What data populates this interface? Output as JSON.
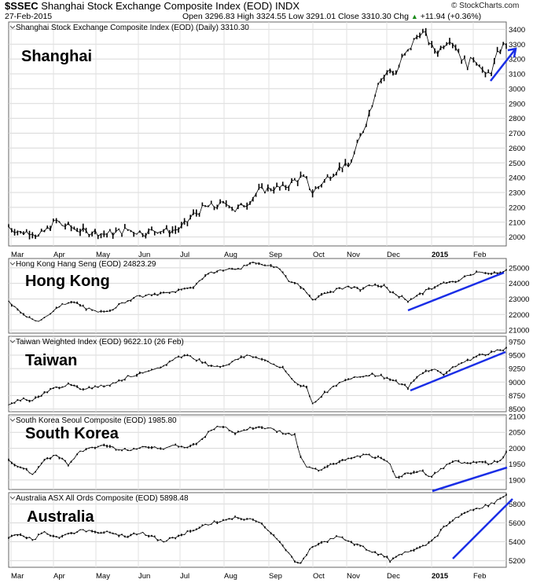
{
  "header": {
    "symbol": "$SSEC",
    "index_name": "Shanghai Stock Exchange Composite Index (EOD)",
    "exchange": "INDX",
    "date": "27-Feb-2015",
    "open_label": "Open",
    "open": "3296.83",
    "high_label": "High",
    "high": "3324.55",
    "low_label": "Low",
    "low": "3291.01",
    "close_label": "Close",
    "close": "3310.30",
    "chg_label": "Chg",
    "chg": "+11.94 (+0.36%)",
    "chg_arrow": "▲",
    "credit": "© StockCharts.com"
  },
  "chart_data": [
    {
      "type": "line",
      "title": "Shanghai Stock Exchange Composite Index (EOD) (Daily) 3310.30",
      "label": "Shanghai",
      "ylim": [
        1940,
        3450
      ],
      "yticks": [
        2000,
        2100,
        2200,
        2300,
        2400,
        2500,
        2600,
        2700,
        2800,
        2900,
        3000,
        3100,
        3200,
        3300,
        3400
      ],
      "x_months": [
        "Mar",
        "Apr",
        "May",
        "Jun",
        "Jul",
        "Aug",
        "Sep",
        "Oct",
        "Nov",
        "Dec",
        "2015",
        "Feb"
      ],
      "series_points": [
        [
          0,
          2070
        ],
        [
          4,
          2030
        ],
        [
          8,
          2040
        ],
        [
          10,
          2000
        ],
        [
          14,
          2070
        ],
        [
          16,
          2110
        ],
        [
          18,
          2080
        ],
        [
          22,
          2060
        ],
        [
          26,
          2030
        ],
        [
          28,
          2040
        ],
        [
          32,
          2020
        ],
        [
          36,
          2030
        ],
        [
          40,
          2050
        ],
        [
          42,
          2040
        ],
        [
          46,
          2030
        ],
        [
          50,
          2050
        ],
        [
          54,
          2040
        ],
        [
          58,
          2060
        ],
        [
          62,
          2150
        ],
        [
          66,
          2200
        ],
        [
          70,
          2210
        ],
        [
          74,
          2230
        ],
        [
          76,
          2180
        ],
        [
          80,
          2230
        ],
        [
          84,
          2310
        ],
        [
          88,
          2330
        ],
        [
          92,
          2330
        ],
        [
          96,
          2380
        ],
        [
          98,
          2400
        ],
        [
          100,
          2380
        ],
        [
          102,
          2300
        ],
        [
          104,
          2340
        ],
        [
          108,
          2420
        ],
        [
          112,
          2480
        ],
        [
          114,
          2470
        ],
        [
          116,
          2560
        ],
        [
          120,
          2780
        ],
        [
          122,
          2900
        ],
        [
          124,
          3050
        ],
        [
          126,
          3080
        ],
        [
          128,
          3130
        ],
        [
          130,
          3100
        ],
        [
          132,
          3200
        ],
        [
          134,
          3250
        ],
        [
          136,
          3320
        ],
        [
          138,
          3380
        ],
        [
          140,
          3360
        ],
        [
          142,
          3280
        ],
        [
          144,
          3250
        ],
        [
          146,
          3300
        ],
        [
          148,
          3340
        ],
        [
          150,
          3290
        ],
        [
          152,
          3210
        ],
        [
          154,
          3160
        ],
        [
          156,
          3210
        ],
        [
          158,
          3170
        ],
        [
          160,
          3080
        ],
        [
          162,
          3120
        ],
        [
          164,
          3230
        ],
        [
          166,
          3290
        ],
        [
          167,
          3310
        ]
      ],
      "trend_arrow": "up"
    },
    {
      "type": "line",
      "title": "Hong Kong Hang Seng (EOD) 24823.29",
      "label": "Hong Kong",
      "ylim": [
        20800,
        25600
      ],
      "yticks": [
        21000,
        22000,
        23000,
        24000,
        25000
      ],
      "series_points": [
        [
          0,
          22800
        ],
        [
          6,
          21800
        ],
        [
          10,
          21600
        ],
        [
          14,
          22100
        ],
        [
          18,
          22600
        ],
        [
          22,
          22800
        ],
        [
          26,
          22400
        ],
        [
          30,
          22100
        ],
        [
          34,
          22300
        ],
        [
          38,
          22700
        ],
        [
          42,
          23100
        ],
        [
          46,
          23200
        ],
        [
          50,
          23300
        ],
        [
          54,
          23400
        ],
        [
          58,
          23600
        ],
        [
          62,
          23800
        ],
        [
          66,
          24500
        ],
        [
          70,
          24800
        ],
        [
          74,
          24900
        ],
        [
          78,
          25000
        ],
        [
          82,
          25300
        ],
        [
          86,
          25200
        ],
        [
          90,
          25100
        ],
        [
          94,
          24200
        ],
        [
          98,
          23800
        ],
        [
          102,
          23000
        ],
        [
          106,
          23300
        ],
        [
          110,
          23600
        ],
        [
          114,
          23800
        ],
        [
          118,
          23600
        ],
        [
          122,
          23900
        ],
        [
          126,
          23800
        ],
        [
          128,
          23500
        ],
        [
          130,
          23300
        ],
        [
          134,
          22900
        ],
        [
          138,
          23300
        ],
        [
          142,
          23700
        ],
        [
          146,
          24000
        ],
        [
          150,
          24100
        ],
        [
          154,
          24500
        ],
        [
          158,
          24800
        ],
        [
          162,
          24600
        ],
        [
          166,
          24700
        ],
        [
          167,
          24820
        ]
      ],
      "trend_arrow": "up"
    },
    {
      "type": "line",
      "title": "Taiwan Weighted Index (EOD) 9622.10 (26 Feb)",
      "label": "Taiwan",
      "ylim": [
        8450,
        9850
      ],
      "yticks": [
        8500,
        8750,
        9000,
        9250,
        9500,
        9750
      ],
      "series_points": [
        [
          0,
          8600
        ],
        [
          4,
          8680
        ],
        [
          8,
          8660
        ],
        [
          12,
          8800
        ],
        [
          16,
          8900
        ],
        [
          20,
          8950
        ],
        [
          24,
          8880
        ],
        [
          28,
          8900
        ],
        [
          32,
          8930
        ],
        [
          36,
          9000
        ],
        [
          40,
          9100
        ],
        [
          44,
          9150
        ],
        [
          48,
          9200
        ],
        [
          52,
          9300
        ],
        [
          56,
          9450
        ],
        [
          60,
          9500
        ],
        [
          64,
          9400
        ],
        [
          68,
          9300
        ],
        [
          72,
          9300
        ],
        [
          76,
          9400
        ],
        [
          80,
          9500
        ],
        [
          84,
          9450
        ],
        [
          88,
          9350
        ],
        [
          92,
          9250
        ],
        [
          96,
          9000
        ],
        [
          100,
          8900
        ],
        [
          102,
          8600
        ],
        [
          106,
          8800
        ],
        [
          110,
          8950
        ],
        [
          114,
          9050
        ],
        [
          118,
          9100
        ],
        [
          122,
          9150
        ],
        [
          126,
          9100
        ],
        [
          130,
          9000
        ],
        [
          134,
          8900
        ],
        [
          138,
          9150
        ],
        [
          142,
          9250
        ],
        [
          146,
          9150
        ],
        [
          150,
          9300
        ],
        [
          154,
          9400
        ],
        [
          158,
          9500
        ],
        [
          162,
          9550
        ],
        [
          166,
          9600
        ],
        [
          167,
          9622
        ]
      ],
      "trend_arrow": "up"
    },
    {
      "type": "line",
      "title": "South Korea Seoul Composite (EOD) 1985.80",
      "label": "South Korea",
      "ylim": [
        1870,
        2105
      ],
      "yticks": [
        1900,
        1950,
        2000,
        2050,
        2100
      ],
      "series_points": [
        [
          0,
          1960
        ],
        [
          4,
          1940
        ],
        [
          8,
          1920
        ],
        [
          12,
          1960
        ],
        [
          16,
          1980
        ],
        [
          20,
          1950
        ],
        [
          24,
          1990
        ],
        [
          28,
          2000
        ],
        [
          32,
          2010
        ],
        [
          36,
          2000
        ],
        [
          40,
          1995
        ],
        [
          44,
          2000
        ],
        [
          48,
          2005
        ],
        [
          52,
          2000
        ],
        [
          56,
          2010
        ],
        [
          60,
          2000
        ],
        [
          64,
          2020
        ],
        [
          68,
          2060
        ],
        [
          72,
          2070
        ],
        [
          76,
          2050
        ],
        [
          80,
          2060
        ],
        [
          84,
          2070
        ],
        [
          88,
          2060
        ],
        [
          92,
          2050
        ],
        [
          96,
          2040
        ],
        [
          98,
          1970
        ],
        [
          100,
          1940
        ],
        [
          104,
          1930
        ],
        [
          108,
          1950
        ],
        [
          112,
          1960
        ],
        [
          116,
          1970
        ],
        [
          120,
          1980
        ],
        [
          124,
          1970
        ],
        [
          128,
          1950
        ],
        [
          130,
          1910
        ],
        [
          134,
          1920
        ],
        [
          138,
          1930
        ],
        [
          142,
          1910
        ],
        [
          146,
          1940
        ],
        [
          150,
          1960
        ],
        [
          154,
          1950
        ],
        [
          158,
          1960
        ],
        [
          162,
          1950
        ],
        [
          166,
          1970
        ],
        [
          167,
          1986
        ]
      ],
      "trend_arrow": "up"
    },
    {
      "type": "line",
      "title": "Australia ASX All Ords Composite (EOD) 5898.48",
      "label": "Australia",
      "ylim": [
        5130,
        5920
      ],
      "yticks": [
        5200,
        5400,
        5600,
        5800
      ],
      "series_points": [
        [
          0,
          5450
        ],
        [
          4,
          5480
        ],
        [
          8,
          5420
        ],
        [
          12,
          5500
        ],
        [
          16,
          5450
        ],
        [
          20,
          5480
        ],
        [
          24,
          5520
        ],
        [
          28,
          5510
        ],
        [
          32,
          5500
        ],
        [
          36,
          5480
        ],
        [
          40,
          5460
        ],
        [
          44,
          5500
        ],
        [
          48,
          5450
        ],
        [
          52,
          5400
        ],
        [
          56,
          5450
        ],
        [
          60,
          5500
        ],
        [
          64,
          5550
        ],
        [
          68,
          5600
        ],
        [
          72,
          5620
        ],
        [
          76,
          5650
        ],
        [
          80,
          5640
        ],
        [
          84,
          5620
        ],
        [
          88,
          5500
        ],
        [
          92,
          5350
        ],
        [
          96,
          5200
        ],
        [
          98,
          5180
        ],
        [
          102,
          5350
        ],
        [
          106,
          5400
        ],
        [
          110,
          5450
        ],
        [
          114,
          5420
        ],
        [
          118,
          5350
        ],
        [
          122,
          5300
        ],
        [
          126,
          5250
        ],
        [
          128,
          5200
        ],
        [
          130,
          5250
        ],
        [
          134,
          5300
        ],
        [
          138,
          5350
        ],
        [
          142,
          5400
        ],
        [
          146,
          5550
        ],
        [
          150,
          5650
        ],
        [
          154,
          5720
        ],
        [
          158,
          5760
        ],
        [
          162,
          5800
        ],
        [
          166,
          5880
        ],
        [
          167,
          5898
        ]
      ],
      "trend_arrow": "up"
    }
  ],
  "accent_color": "#1a2ee6"
}
